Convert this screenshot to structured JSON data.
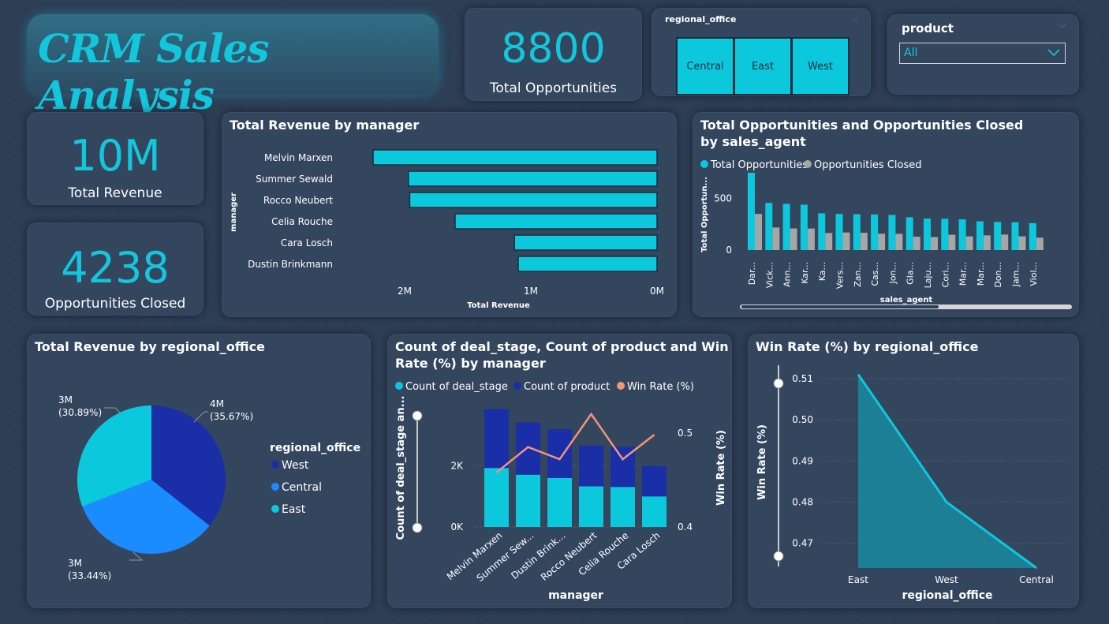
{
  "title": "CRM Sales Analysis",
  "kpis": {
    "total_opportunities": {
      "value": "8800",
      "label": "Total Opportunities"
    },
    "total_revenue": {
      "value": "10M",
      "label": "Total Revenue"
    },
    "opportunities_closed": {
      "value": "4238",
      "label": "Opportunities Closed"
    }
  },
  "regional_slicer": {
    "label": "regional_office",
    "options": [
      "Central",
      "East",
      "West"
    ]
  },
  "product_slicer": {
    "label": "product",
    "selected": "All"
  },
  "colors": {
    "accent": "#0cc8dc",
    "bg": "#2d3e55",
    "card": "#34465e",
    "navy": "#1a2ea8",
    "blue": "#1a8cff",
    "orange": "#f0967a",
    "grey": "#a6a6a6"
  },
  "chart_data": [
    {
      "id": "revenue_by_manager",
      "type": "bar",
      "title": "Total Revenue by manager",
      "xlabel": "Total Revenue",
      "ylabel": "manager",
      "categories": [
        "Melvin Marxen",
        "Summer Sewald",
        "Rocco Neubert",
        "Celia Rouche",
        "Cara Losch",
        "Dustin Brinkmann"
      ],
      "values": [
        2.25,
        1.97,
        1.96,
        1.6,
        1.13,
        1.1
      ],
      "unit": "M",
      "xticks": [
        "2M",
        "1M",
        "0M"
      ],
      "xlim": [
        0,
        2.25
      ]
    },
    {
      "id": "opps_by_agent",
      "type": "bar",
      "title": "Total Opportunities and Opportunities Closed by sales_agent",
      "xlabel": "sales_agent",
      "ylabel": "Total Opportun...",
      "legend": [
        "Total Opportunities",
        "Opportunities Closed"
      ],
      "categories": [
        "Dar...",
        "Vick...",
        "Ann...",
        "Kar...",
        "Ka...",
        "Vers...",
        "Zan...",
        "Cas...",
        "Jon...",
        "Gla...",
        "Laju...",
        "Cori...",
        "Mar...",
        "Mar...",
        "Don...",
        "Jam...",
        "Viol..."
      ],
      "series": [
        {
          "name": "Total Opportunities",
          "values": [
            747,
            455,
            447,
            438,
            355,
            349,
            346,
            344,
            339,
            317,
            305,
            302,
            297,
            278,
            272,
            269,
            260
          ]
        },
        {
          "name": "Opportunities Closed",
          "values": [
            349,
            218,
            209,
            208,
            165,
            170,
            167,
            158,
            157,
            129,
            126,
            148,
            132,
            142,
            150,
            133,
            120
          ]
        }
      ],
      "yticks": [
        "0",
        "500"
      ],
      "ylim": [
        0,
        800
      ]
    },
    {
      "id": "revenue_by_region",
      "type": "pie",
      "title": "Total Revenue by regional_office",
      "legend_title": "regional_office",
      "slices": [
        {
          "name": "West",
          "value": 35.67,
          "label": "4M (35.67%)"
        },
        {
          "name": "Central",
          "value": 33.44,
          "label": "3M (33.44%)"
        },
        {
          "name": "East",
          "value": 30.89,
          "label": "3M (30.89%)"
        }
      ]
    },
    {
      "id": "deal_stage_by_manager",
      "type": "bar",
      "title": "Count of deal_stage, Count of product and Win Rate (%) by manager",
      "xlabel": "manager",
      "ylabel": "Count of deal_stage an...",
      "y2label": "Win Rate (%)",
      "legend": [
        "Count of deal_stage",
        "Count of product",
        "Win Rate (%)"
      ],
      "categories": [
        "Melvin Marxen",
        "Summer Sew...",
        "Dustin Brink...",
        "Rocco Neubert",
        "Celia Rouche",
        "Cara Losch"
      ],
      "series": [
        {
          "name": "Count of deal_stage",
          "values": [
            1930,
            1710,
            1600,
            1330,
            1310,
            1000
          ]
        },
        {
          "name": "Count of product",
          "values": [
            1930,
            1710,
            1600,
            1330,
            1310,
            1000
          ]
        },
        {
          "name": "Win Rate (%)",
          "values": [
            0.458,
            0.485,
            0.472,
            0.52,
            0.472,
            0.498
          ]
        }
      ],
      "yticks": [
        "0K",
        "2K"
      ],
      "ylim": [
        0,
        4000
      ],
      "y2ticks": [
        "0.4",
        "0.5"
      ],
      "y2lim": [
        0.4,
        0.53
      ]
    },
    {
      "id": "winrate_by_region",
      "type": "area",
      "title": "Win Rate (%) by regional_office",
      "xlabel": "regional_office",
      "ylabel": "Win Rate (%)",
      "categories": [
        "East",
        "West",
        "Central"
      ],
      "values": [
        0.511,
        0.48,
        0.464
      ],
      "yticks": [
        "0.47",
        "0.48",
        "0.49",
        "0.50",
        "0.51"
      ],
      "ylim": [
        0.464,
        0.514
      ]
    }
  ]
}
